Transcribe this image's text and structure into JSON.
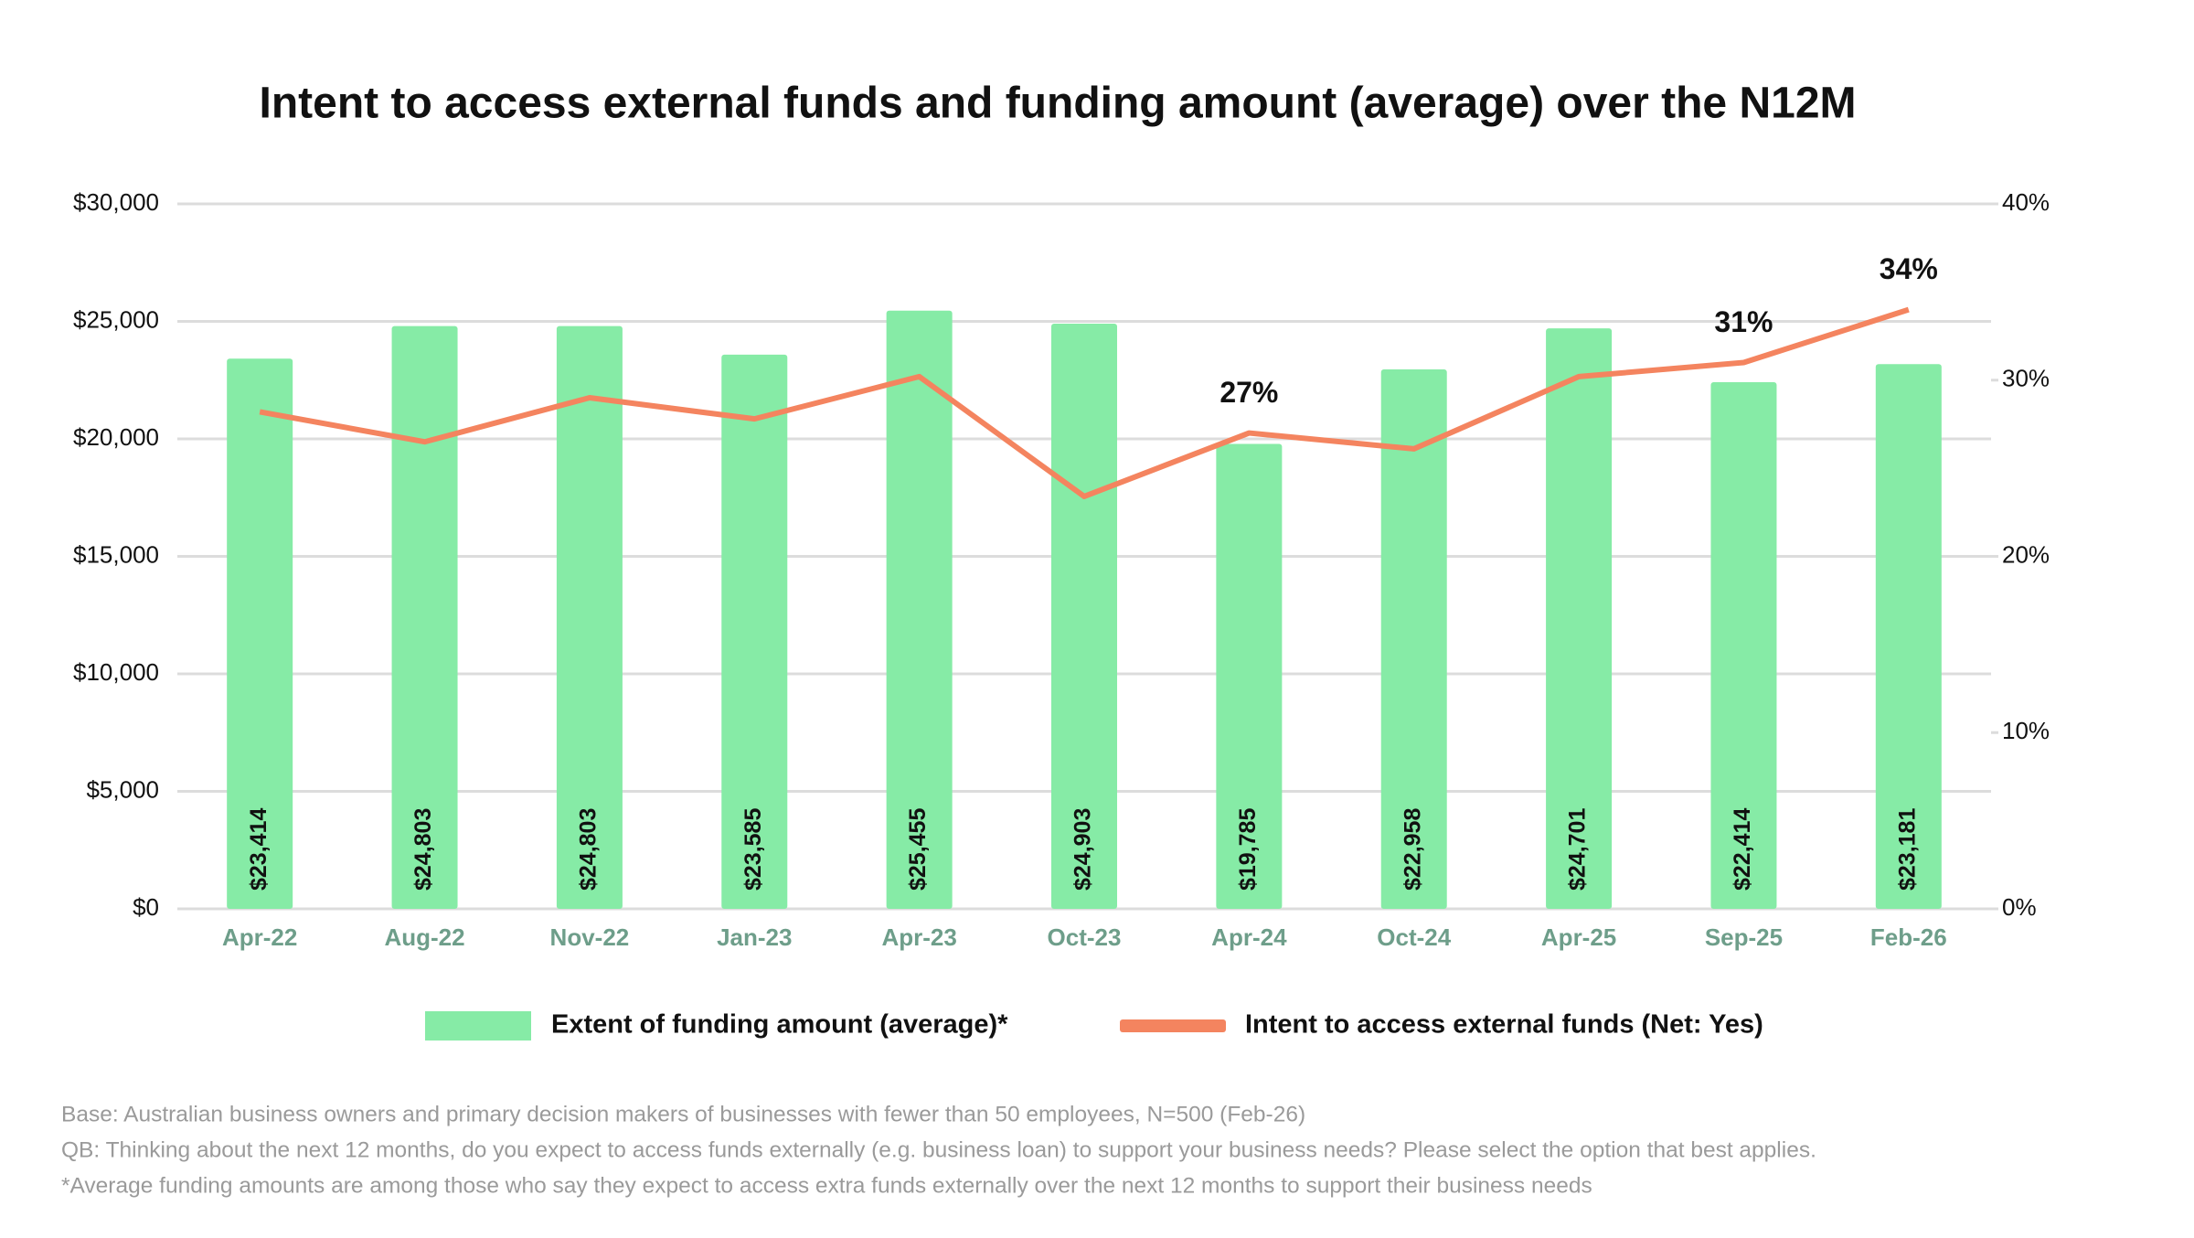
{
  "chart_data": {
    "type": "bar_line",
    "title": "Intent to access external funds and funding amount (average) over the N12M",
    "categories": [
      "Apr-22",
      "Aug-22",
      "Nov-22",
      "Jan-23",
      "Apr-23",
      "Oct-23",
      "Apr-24",
      "Oct-24",
      "Apr-25",
      "Sep-25",
      "Feb-26"
    ],
    "series": [
      {
        "name": "Extent of funding amount (average)*",
        "type": "bar",
        "color": "#86eba6",
        "values": [
          23414,
          24803,
          24803,
          23585,
          25455,
          24903,
          19785,
          22958,
          24701,
          22414,
          23181
        ],
        "value_labels": [
          "$23,414",
          "$24,803",
          "$24,803",
          "$23,585",
          "$25,455",
          "$24,903",
          "$19,785",
          "$22,958",
          "$24,701",
          "$22,414",
          "$23,181"
        ]
      },
      {
        "name": "Intent to access external funds (Net: Yes)",
        "type": "line",
        "axis": "y2",
        "color": "#f4845f",
        "values": [
          28.2,
          26.5,
          29,
          27.8,
          30.2,
          23.4,
          27,
          26.1,
          30.2,
          31,
          34
        ],
        "value_labels": [
          null,
          null,
          null,
          null,
          null,
          null,
          "27%",
          null,
          null,
          "31%",
          "34%"
        ]
      }
    ],
    "ylim": [
      0,
      30000
    ],
    "yticks": [
      {
        "value": 0,
        "label": "$0"
      },
      {
        "value": 5000,
        "label": "$5,000"
      },
      {
        "value": 10000,
        "label": "$10,000"
      },
      {
        "value": 15000,
        "label": "$15,000"
      },
      {
        "value": 20000,
        "label": "$20,000"
      },
      {
        "value": 25000,
        "label": "$25,000"
      },
      {
        "value": 30000,
        "label": "$30,000"
      }
    ],
    "y2lim": [
      0,
      40
    ],
    "y2ticks": [
      {
        "value": 0,
        "label": "0%"
      },
      {
        "value": 10,
        "label": "10%"
      },
      {
        "value": 20,
        "label": "20%"
      },
      {
        "value": 30,
        "label": "30%"
      },
      {
        "value": 40,
        "label": "40%"
      }
    ],
    "grid": true,
    "legend": "bottom",
    "notes": [
      "Base: Australian business owners and primary decision makers of businesses with fewer than 50 employees, N=500 (Feb-26)",
      "QB: Thinking about the next 12 months, do you expect to access funds externally (e.g. business loan) to support your business needs? Please select the option that best applies.",
      "*Average funding amounts are among those who say they expect to access extra funds externally over the next 12 months to support their business needs"
    ]
  }
}
